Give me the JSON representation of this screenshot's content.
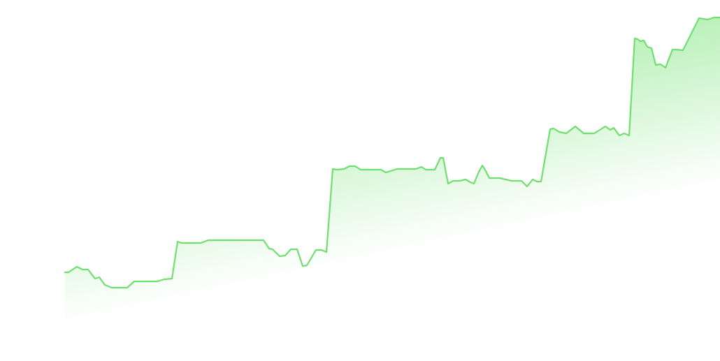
{
  "chart_data": {
    "type": "line",
    "color": "#6fe06f",
    "x": [
      93,
      98,
      110,
      118,
      126,
      136,
      142,
      150,
      160,
      170,
      182,
      192,
      205,
      225,
      235,
      246,
      254,
      260,
      270,
      287,
      298,
      320,
      350,
      377,
      385,
      390,
      400,
      408,
      416,
      425,
      433,
      439,
      452,
      460,
      467,
      476,
      482,
      492,
      500,
      508,
      516,
      530,
      545,
      552,
      568,
      580,
      595,
      603,
      609,
      622,
      630,
      634,
      641,
      648,
      658,
      666,
      673,
      678,
      685,
      690,
      695,
      700,
      715,
      732,
      746,
      754,
      762,
      768,
      774,
      787,
      792,
      800,
      810,
      823,
      835,
      850,
      866,
      873,
      878,
      886,
      893,
      900,
      908,
      912,
      916,
      921,
      926,
      932,
      938,
      945,
      952,
      962,
      967,
      977,
      1000,
      1012,
      1022,
      1030
    ],
    "values": [
      127,
      127,
      135,
      131,
      131,
      118,
      120,
      109,
      105,
      105,
      105,
      114,
      114,
      114,
      117,
      118,
      171,
      169,
      169,
      169,
      173,
      173,
      173,
      173,
      161,
      160,
      150,
      151,
      160,
      160,
      136,
      137,
      159,
      159,
      156,
      275,
      274,
      275,
      279,
      279,
      274,
      274,
      274,
      270,
      275,
      275,
      275,
      278,
      274,
      274,
      291,
      291,
      254,
      258,
      258,
      260,
      256,
      254,
      271,
      280,
      272,
      262,
      262,
      258,
      258,
      250,
      260,
      257,
      257,
      332,
      333,
      328,
      326,
      336,
      326,
      326,
      336,
      331,
      334,
      323,
      326,
      323,
      462,
      461,
      458,
      459,
      450,
      448,
      424,
      425,
      420,
      446,
      446,
      445,
      491,
      489,
      492,
      492
    ]
  }
}
